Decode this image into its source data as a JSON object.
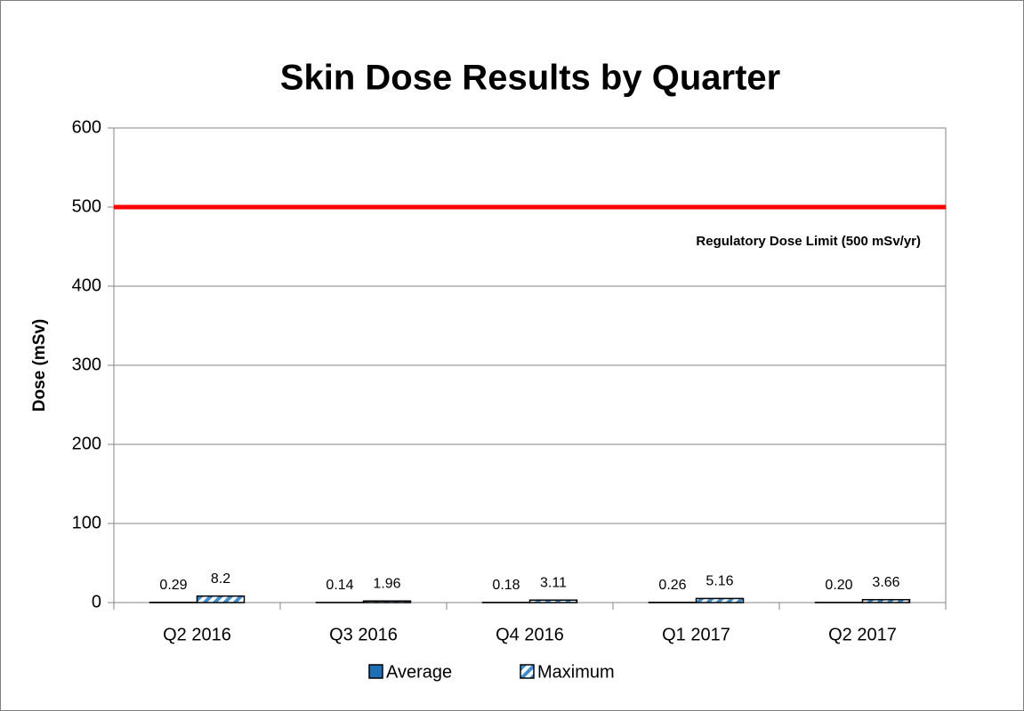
{
  "chart_data": {
    "type": "bar",
    "title": "Skin Dose Results by Quarter",
    "y_label": "Dose (mSv)",
    "categories": [
      "Q2 2016",
      "Q3 2016",
      "Q4 2016",
      "Q1 2017",
      "Q2 2017"
    ],
    "series": [
      {
        "name": "Average",
        "color": "#1f6fb5",
        "values": [
          0.29,
          0.14,
          0.18,
          0.26,
          0.2
        ],
        "value_labels": [
          "0.29",
          "0.14",
          "0.18",
          "0.26",
          "0.20"
        ]
      },
      {
        "name": "Maximum",
        "color": "#3d8fd0",
        "pattern": "diagonal",
        "values": [
          8.2,
          1.96,
          3.11,
          5.16,
          3.66
        ]
      }
    ],
    "reference_line": {
      "value": 500,
      "label": "Regulatory Dose Limit (500 mSv/yr)",
      "color": "#ff0000"
    },
    "ylim": [
      0,
      600
    ],
    "yticks": [
      0,
      100,
      200,
      300,
      400,
      500,
      600
    ],
    "grid": true,
    "legend": "bottom"
  }
}
